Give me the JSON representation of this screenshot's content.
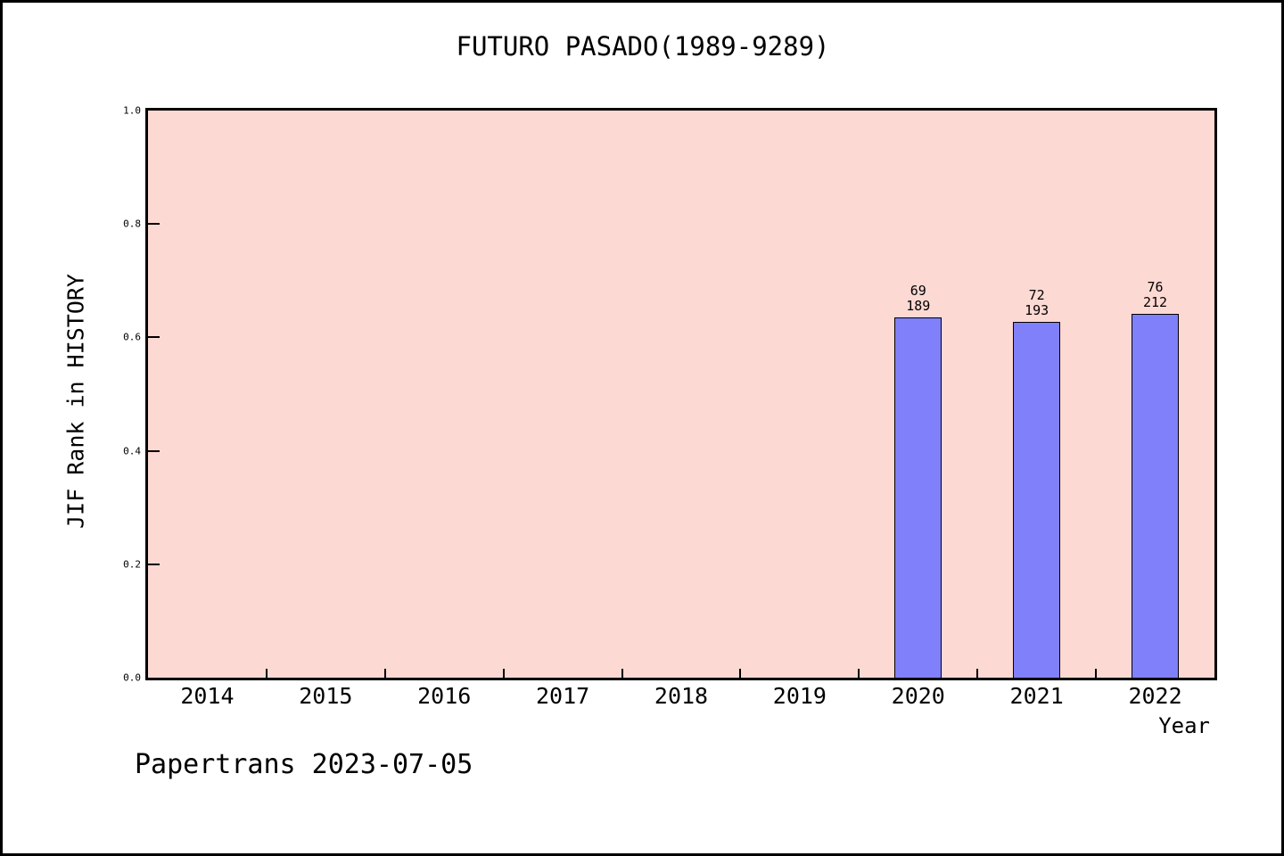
{
  "figure": {
    "title": "FUTURO PASADO(1989-9289)",
    "footer": "Papertrans 2023-07-05"
  },
  "chart_data": {
    "type": "bar",
    "title": "FUTURO PASADO(1989-9289)",
    "xlabel": "Year",
    "ylabel": "JIF Rank in HISTORY",
    "categories": [
      "2014",
      "2015",
      "2016",
      "2017",
      "2018",
      "2019",
      "2020",
      "2021",
      "2022"
    ],
    "y_ticks": [
      "0.0",
      "0.2",
      "0.4",
      "0.6",
      "0.8",
      "1.0"
    ],
    "ylim": [
      0.0,
      1.0
    ],
    "grid": false,
    "legend_position": "none",
    "bars": [
      {
        "category": "2020",
        "rank": 69,
        "total": 189,
        "annotation": "69\n189",
        "value": 0.635
      },
      {
        "category": "2021",
        "rank": 72,
        "total": 193,
        "annotation": "72\n193",
        "value": 0.627
      },
      {
        "category": "2022",
        "rank": 76,
        "total": 212,
        "annotation": "76\n212",
        "value": 0.642
      }
    ],
    "colors": {
      "bar_fill": "#8080FA",
      "bar_edge": "#000000",
      "plot_bg": "#FDD9D3",
      "figure_bg": "#FFFFFF",
      "text": "#000000"
    },
    "footer": "Papertrans 2023-07-05"
  }
}
